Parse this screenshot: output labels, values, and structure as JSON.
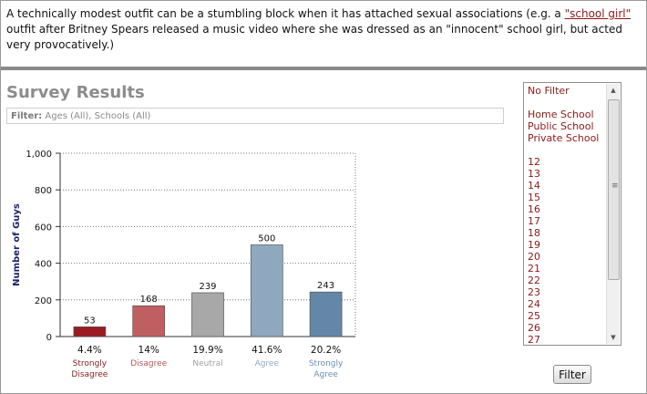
{
  "intro": {
    "text_before": "A technically modest outfit can be a stumbling block when it has attached sexual associations (e.g. a ",
    "link_text": "\"school girl\"",
    "text_after": " outfit after Britney Spears released a music video where she was dressed as an \"innocent\" school girl, but acted very provocatively.)"
  },
  "survey": {
    "title": "Survey Results",
    "filter_label": "Filter:",
    "filter_value": "Ages (All), Schools (All)"
  },
  "chart_data": {
    "type": "bar",
    "title": "",
    "xlabel": "",
    "ylabel": "Number of Guys",
    "ylim": [
      0,
      1000
    ],
    "yticks": [
      0,
      200,
      400,
      600,
      800,
      1000
    ],
    "ytick_labels": [
      "0",
      "200",
      "400",
      "600",
      "800",
      "1,000"
    ],
    "grid": true,
    "categories": [
      "Strongly Disagree",
      "Disagree",
      "Neutral",
      "Agree",
      "Strongly Agree"
    ],
    "category_lines": [
      [
        "Strongly",
        "Disagree"
      ],
      [
        "Disagree"
      ],
      [
        "Neutral"
      ],
      [
        "Agree"
      ],
      [
        "Strongly",
        "Agree"
      ]
    ],
    "values": [
      53,
      168,
      239,
      500,
      243
    ],
    "value_labels": [
      "53",
      "168",
      "239",
      "500",
      "243"
    ],
    "percents": [
      "4.4%",
      "14%",
      "19.9%",
      "41.6%",
      "20.2%"
    ],
    "colors": [
      "#9b1b22",
      "#bf5f61",
      "#a8a8a8",
      "#8fa8bf",
      "#6487a8"
    ],
    "label_colors": [
      "#8b1a1a",
      "#b85555",
      "#a0a0a0",
      "#8fa8c4",
      "#6a8db0"
    ]
  },
  "filter_list": {
    "options": [
      "No Filter",
      "",
      "Home School",
      "Public School",
      "Private School",
      "",
      "12",
      "13",
      "14",
      "15",
      "16",
      "17",
      "18",
      "19",
      "20",
      "21",
      "22",
      "23",
      "24",
      "25",
      "26",
      "27"
    ],
    "up_glyph": "▲",
    "down_glyph": "▼",
    "grip_glyph": "≡"
  },
  "filter_button": {
    "label": "Filter"
  }
}
